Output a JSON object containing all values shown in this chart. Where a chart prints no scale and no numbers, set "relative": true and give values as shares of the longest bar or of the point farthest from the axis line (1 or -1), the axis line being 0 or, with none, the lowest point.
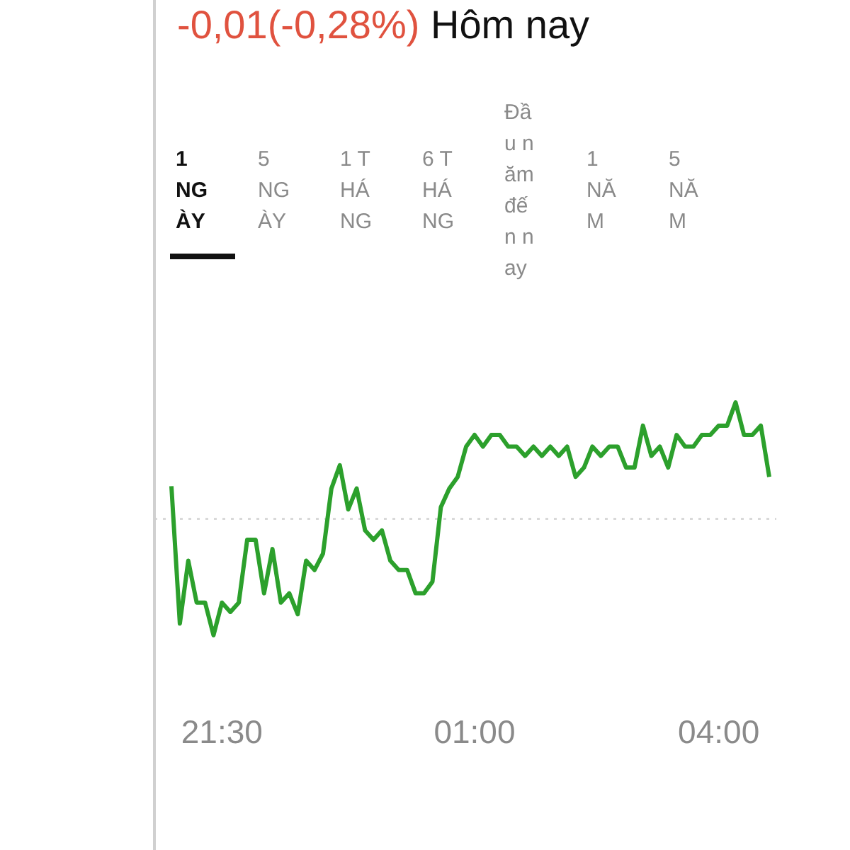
{
  "chart_data": {
    "type": "line",
    "title": "Hôm nay",
    "relative": true,
    "annotations": [
      "-0,01(-0,28%)",
      "1 NGÀY",
      "5 NGÀY",
      "1 THÁNG",
      "6 THÁNG",
      "Đầu năm đến nay",
      "1 NĂM",
      "5 NĂM"
    ],
    "categories": [
      null,
      null,
      null,
      null,
      null,
      null,
      "21:30",
      null,
      null,
      null,
      null,
      null,
      null,
      null,
      null,
      null,
      null,
      null,
      null,
      null,
      null,
      null,
      null,
      null,
      null,
      null,
      null,
      null,
      null,
      null,
      null,
      null,
      null,
      null,
      null,
      null,
      "01:00",
      null,
      null,
      null,
      null,
      null,
      null,
      null,
      null,
      null,
      null,
      null,
      null,
      null,
      null,
      null,
      null,
      null,
      null,
      null,
      null,
      null,
      null,
      null,
      null,
      null,
      null,
      null,
      null,
      "04:00",
      null,
      null,
      null,
      null,
      null,
      null
    ],
    "grid": false,
    "legend": false,
    "marker": "none",
    "line_style": "solid",
    "ref_lines": [
      {
        "axis": "y",
        "value": 0.5,
        "color": "#d9d9d9",
        "line_style": "dotted"
      }
    ],
    "series": [
      {
        "color": "#2ca02c",
        "values": [
          0.64,
          0.05,
          0.32,
          0.14,
          0.14,
          0,
          0.14,
          0.1,
          0.14,
          0.41,
          0.41,
          0.18,
          0.37,
          0.14,
          0.18,
          0.09,
          0.32,
          0.28,
          0.35,
          0.63,
          0.73,
          0.54,
          0.63,
          0.45,
          0.41,
          0.45,
          0.32,
          0.28,
          0.28,
          0.18,
          0.18,
          0.23,
          0.55,
          0.63,
          0.68,
          0.81,
          0.86,
          0.81,
          0.86,
          0.86,
          0.81,
          0.81,
          0.77,
          0.81,
          0.77,
          0.81,
          0.77,
          0.81,
          0.68,
          0.72,
          0.81,
          0.77,
          0.81,
          0.81,
          0.72,
          0.72,
          0.9,
          0.77,
          0.81,
          0.72,
          0.86,
          0.81,
          0.81,
          0.86,
          0.86,
          0.9,
          0.9,
          1,
          0.86,
          0.86,
          0.9,
          0.68
        ]
      }
    ]
  }
}
